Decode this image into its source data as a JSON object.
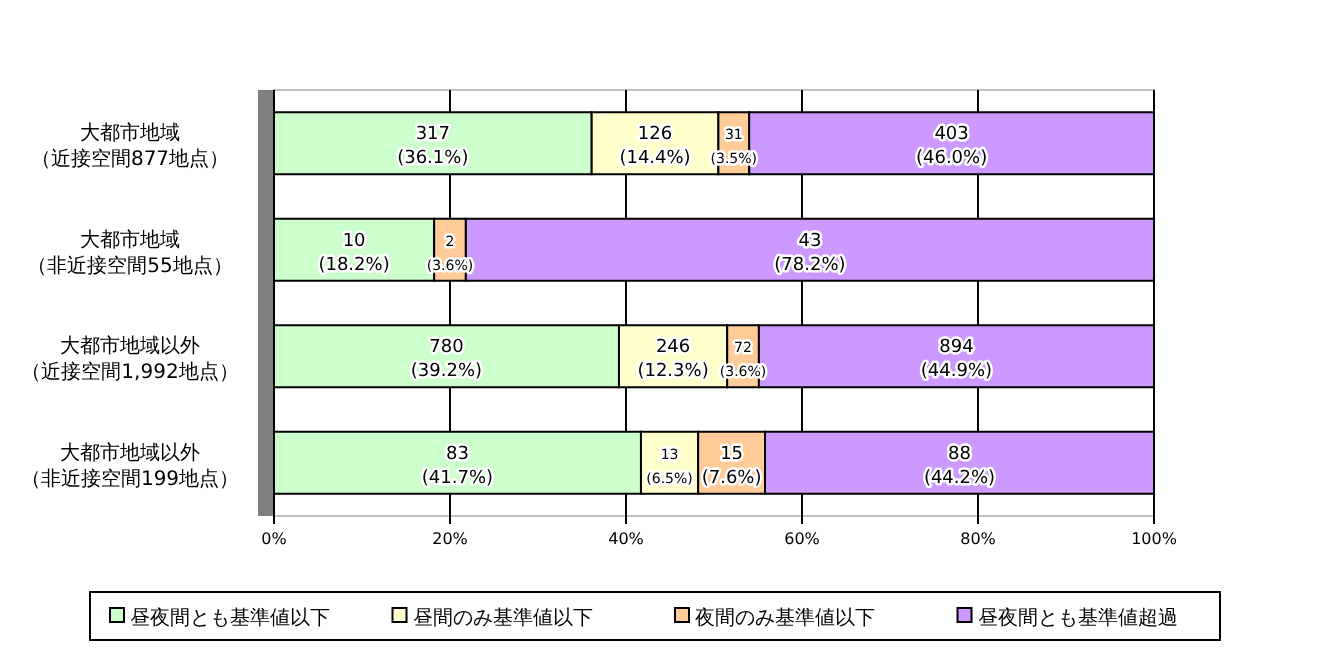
{
  "chart_data": {
    "type": "bar",
    "orientation": "horizontal",
    "stacked": true,
    "categories": [
      "大都市地域（近接空間877地点）",
      "大都市地域（非近接空間55地点）",
      "大都市地域以外（近接空間1,992地点）",
      "大都市地域以外（非近接空間199地点）"
    ],
    "series": [
      {
        "name": "昼夜間とも基準値以下",
        "color": "#ccffcc",
        "values": [
          36.1,
          18.2,
          39.2,
          41.7
        ],
        "value_labels": [
          "317\n(36.1%)",
          "10\n(18.2%)",
          "780\n(39.2%)",
          "83\n(41.7%)"
        ]
      },
      {
        "name": "昼間のみ基準値以下",
        "color": "#ffffcc",
        "values": [
          14.4,
          null,
          12.3,
          6.5
        ],
        "value_labels": [
          "126\n(14.4%)",
          null,
          "246\n(12.3%)",
          "13\n(6.5%)"
        ]
      },
      {
        "name": "夜間のみ基準値以下",
        "color": "#ffcc99",
        "values": [
          3.5,
          3.6,
          3.6,
          7.6
        ],
        "value_labels": [
          "31\n(3.5%)",
          "2\n(3.6%)",
          "72\n(3.6%)",
          "15\n(7.6%)"
        ]
      },
      {
        "name": "昼夜間とも基準値超過",
        "color": "#cc99ff",
        "values": [
          46.0,
          78.2,
          44.9,
          44.2
        ],
        "value_labels": [
          "403\n(46.0%)",
          "43\n(78.2%)",
          "894\n(44.9%)",
          "88\n(44.2%)"
        ]
      }
    ],
    "xlim": [
      0,
      100
    ],
    "xticks": [
      {
        "value": 0,
        "label": "0%"
      },
      {
        "value": 20,
        "label": "20%"
      },
      {
        "value": 40,
        "label": "40%"
      },
      {
        "value": 60,
        "label": "60%"
      },
      {
        "value": 80,
        "label": "80%"
      },
      {
        "value": 100,
        "label": "100%"
      }
    ],
    "grid": "x",
    "legend": "bottom"
  }
}
